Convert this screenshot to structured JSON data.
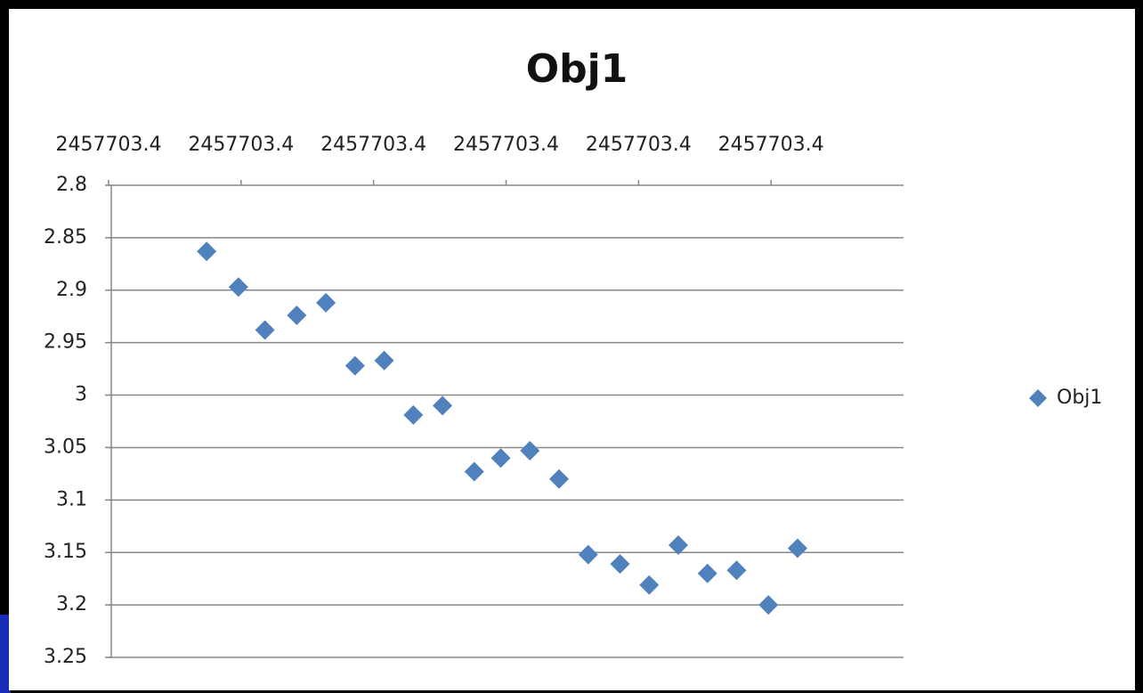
{
  "chart_data": {
    "type": "scatter",
    "title": "Obj1",
    "series": [
      {
        "name": "Obj1",
        "color": "#4f81bd",
        "x": [
          2457703.3787,
          2457703.3799,
          2457703.3809,
          2457703.3821,
          2457703.3832,
          2457703.3843,
          2457703.3854,
          2457703.3865,
          2457703.3876,
          2457703.3888,
          2457703.3898,
          2457703.3909,
          2457703.392,
          2457703.3931,
          2457703.3943,
          2457703.3954,
          2457703.3965,
          2457703.3976,
          2457703.3987,
          2457703.3999,
          2457703.401
        ],
        "values": [
          2.863,
          2.897,
          2.938,
          2.924,
          2.912,
          2.972,
          2.967,
          3.019,
          3.01,
          3.073,
          3.06,
          3.053,
          3.08,
          3.152,
          3.161,
          3.181,
          3.143,
          3.17,
          3.167,
          3.2,
          3.146
        ]
      }
    ],
    "xlim": [
      2457703.375,
      2457703.405
    ],
    "xticks": [
      {
        "value": 2457703.375,
        "label": "2457703.4"
      },
      {
        "value": 2457703.38,
        "label": "2457703.4"
      },
      {
        "value": 2457703.385,
        "label": "2457703.4"
      },
      {
        "value": 2457703.39,
        "label": "2457703.4"
      },
      {
        "value": 2457703.395,
        "label": "2457703.4"
      },
      {
        "value": 2457703.4,
        "label": "2457703.4"
      }
    ],
    "ylim": [
      2.8,
      3.25
    ],
    "y_reversed": true,
    "yticks": [
      2.8,
      2.85,
      2.9,
      2.95,
      3,
      3.05,
      3.1,
      3.15,
      3.2,
      3.25
    ],
    "grid": true,
    "legend": "right"
  }
}
